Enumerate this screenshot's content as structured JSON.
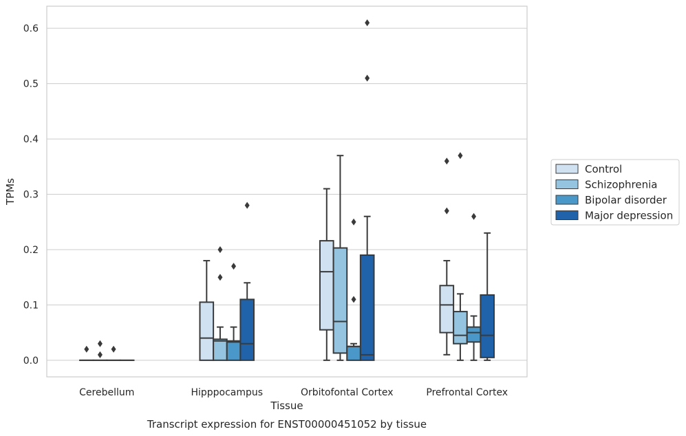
{
  "chart_data": {
    "type": "box",
    "categories": [
      "Cerebellum",
      "Hipppocampus",
      "Orbitofontal Cortex",
      "Prefrontal Cortex"
    ],
    "xlabel": "Tissue",
    "ylabel": "TPMs",
    "caption": "Transcript expression for ENST00000451052 by tissue",
    "ylim": [
      -0.03,
      0.64
    ],
    "yticks": [
      0.0,
      0.1,
      0.2,
      0.3,
      0.4,
      0.5,
      0.6
    ],
    "ytick_labels": [
      "0.0",
      "0.1",
      "0.2",
      "0.3",
      "0.4",
      "0.5",
      "0.6"
    ],
    "grid": true,
    "legend_position": "right",
    "series": [
      {
        "name": "Control",
        "color": "#d0e1f2",
        "boxes": [
          {
            "whislo": 0,
            "q1": 0,
            "med": 0,
            "q3": 0,
            "whishi": 0,
            "fliers": [
              0.02
            ]
          },
          {
            "whislo": 0,
            "q1": 0,
            "med": 0.04,
            "q3": 0.105,
            "whishi": 0.18,
            "fliers": []
          },
          {
            "whislo": 0,
            "q1": 0.055,
            "med": 0.16,
            "q3": 0.216,
            "whishi": 0.31,
            "fliers": []
          },
          {
            "whislo": 0.01,
            "q1": 0.05,
            "med": 0.1,
            "q3": 0.135,
            "whishi": 0.18,
            "fliers": [
              0.27,
              0.36
            ]
          }
        ]
      },
      {
        "name": "Schizophrenia",
        "color": "#94c4df",
        "boxes": [
          {
            "whislo": 0,
            "q1": 0,
            "med": 0,
            "q3": 0,
            "whishi": 0,
            "fliers": [
              0.01,
              0.03
            ]
          },
          {
            "whislo": 0,
            "q1": 0,
            "med": 0.035,
            "q3": 0.038,
            "whishi": 0.06,
            "fliers": [
              0.15,
              0.2
            ]
          },
          {
            "whislo": 0,
            "q1": 0.013,
            "med": 0.07,
            "q3": 0.203,
            "whishi": 0.37,
            "fliers": []
          },
          {
            "whislo": 0,
            "q1": 0.03,
            "med": 0.045,
            "q3": 0.088,
            "whishi": 0.12,
            "fliers": [
              0.37
            ]
          }
        ]
      },
      {
        "name": "Bipolar disorder",
        "color": "#4a98c9",
        "boxes": [
          {
            "whislo": 0,
            "q1": 0,
            "med": 0,
            "q3": 0,
            "whishi": 0,
            "fliers": [
              0.02
            ]
          },
          {
            "whislo": 0,
            "q1": 0,
            "med": 0.033,
            "q3": 0.035,
            "whishi": 0.06,
            "fliers": [
              0.17
            ]
          },
          {
            "whislo": 0,
            "q1": 0,
            "med": 0.025,
            "q3": 0.025,
            "whishi": 0.03,
            "fliers": [
              0.11,
              0.25
            ]
          },
          {
            "whislo": 0,
            "q1": 0.033,
            "med": 0.05,
            "q3": 0.06,
            "whishi": 0.08,
            "fliers": [
              0.26
            ]
          }
        ]
      },
      {
        "name": "Major depression",
        "color": "#2163aa",
        "boxes": [
          {
            "whislo": 0,
            "q1": 0,
            "med": 0,
            "q3": 0,
            "whishi": 0,
            "fliers": []
          },
          {
            "whislo": 0,
            "q1": 0,
            "med": 0.03,
            "q3": 0.11,
            "whishi": 0.14,
            "fliers": [
              0.28
            ]
          },
          {
            "whislo": 0,
            "q1": 0,
            "med": 0.01,
            "q3": 0.19,
            "whishi": 0.26,
            "fliers": [
              0.51,
              0.61
            ]
          },
          {
            "whislo": 0,
            "q1": 0.005,
            "med": 0.045,
            "q3": 0.118,
            "whishi": 0.23,
            "fliers": []
          }
        ]
      }
    ]
  }
}
